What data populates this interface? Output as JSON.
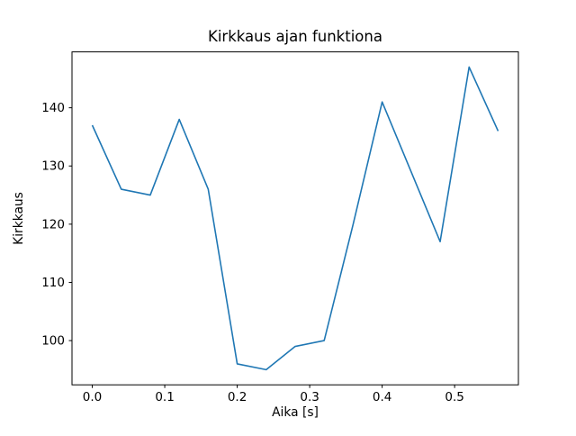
{
  "chart_data": {
    "type": "line",
    "title": "Kirkkaus ajan funktiona",
    "xlabel": "Aika [s]",
    "ylabel": "Kirkkaus",
    "x": [
      0.0,
      0.04,
      0.08,
      0.12,
      0.16,
      0.2,
      0.24,
      0.28,
      0.32,
      0.36,
      0.4,
      0.44,
      0.48,
      0.52,
      0.56
    ],
    "y": [
      137,
      126,
      125,
      138,
      126,
      96,
      95,
      99,
      100,
      120,
      141,
      129,
      117,
      147,
      136
    ],
    "xlim": [
      -0.028,
      0.588
    ],
    "ylim": [
      92.4,
      149.6
    ],
    "xticks": [
      0.0,
      0.1,
      0.2,
      0.3,
      0.4,
      0.5
    ],
    "yticks": [
      100,
      110,
      120,
      130,
      140
    ],
    "line_color": "#1f77b4",
    "axis_color": "#000000",
    "grid": false,
    "legend_visible": false
  }
}
